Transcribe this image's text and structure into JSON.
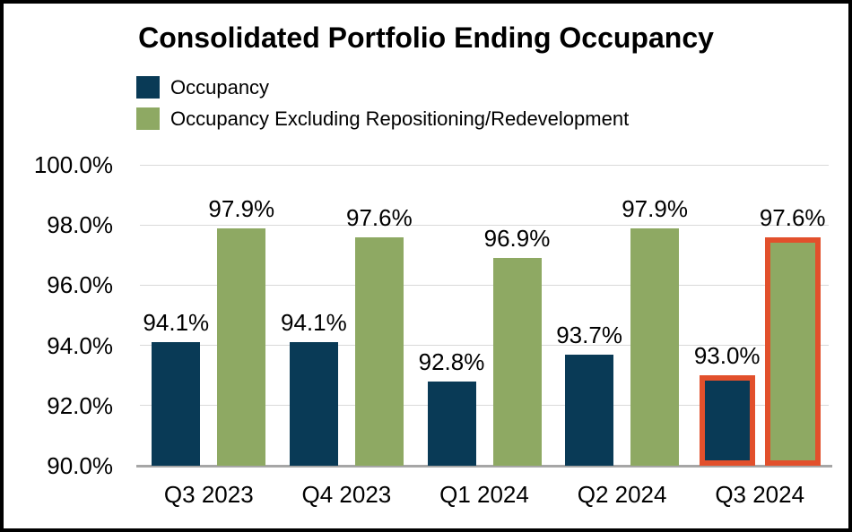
{
  "chart_data": {
    "type": "bar",
    "title": "Consolidated Portfolio Ending Occupancy",
    "categories": [
      "Q3 2023",
      "Q4 2023",
      "Q1 2024",
      "Q2 2024",
      "Q3 2024"
    ],
    "series": [
      {
        "name": "Occupancy",
        "color": "#093A56",
        "values": [
          94.1,
          94.1,
          92.8,
          93.7,
          93.0
        ],
        "labels": [
          "94.1%",
          "94.1%",
          "92.8%",
          "93.7%",
          "93.0%"
        ]
      },
      {
        "name": "Occupancy Excluding Repositioning/Redevelopment",
        "color": "#8EA963",
        "values": [
          97.9,
          97.6,
          96.9,
          97.9,
          97.6
        ],
        "labels": [
          "97.9%",
          "97.6%",
          "96.9%",
          "97.9%",
          "97.6%"
        ]
      }
    ],
    "y_axis": {
      "min": 90,
      "max": 100,
      "step": 2,
      "tick_labels": [
        "90.0%",
        "92.0%",
        "94.0%",
        "96.0%",
        "98.0%",
        "100.0%"
      ]
    },
    "x_axis": {
      "tick_labels": [
        "Q3 2023",
        "Q4 2023",
        "Q1 2024",
        "Q2 2024",
        "Q3 2024"
      ]
    },
    "highlight": {
      "category_index": 4,
      "category": "Q3 2024",
      "border_color": "#E2502C"
    },
    "grid": true,
    "legend_position": "top-left",
    "colors": {
      "gridline": "#D9D9D9",
      "axis_line": "#A6A6A6",
      "background": "#FFFFFF",
      "border": "#000000"
    }
  }
}
